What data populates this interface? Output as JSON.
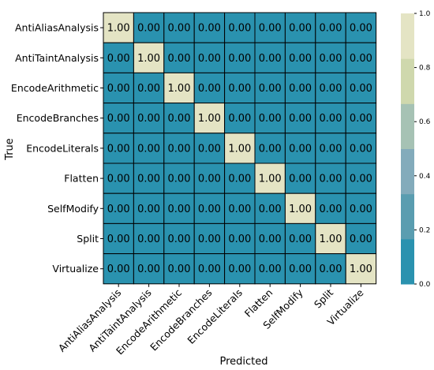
{
  "chart_data": {
    "type": "heatmap",
    "title": "",
    "xlabel": "Predicted",
    "ylabel": "True",
    "labels": [
      "AntiAliasAnalysis",
      "AntiTaintAnalysis",
      "EncodeArithmetic",
      "EncodeBranches",
      "EncodeLiterals",
      "Flatten",
      "SelfModify",
      "Split",
      "Virtualize"
    ],
    "matrix": [
      [
        1,
        0,
        0,
        0,
        0,
        0,
        0,
        0,
        0
      ],
      [
        0,
        1,
        0,
        0,
        0,
        0,
        0,
        0,
        0
      ],
      [
        0,
        0,
        1,
        0,
        0,
        0,
        0,
        0,
        0
      ],
      [
        0,
        0,
        0,
        1,
        0,
        0,
        0,
        0,
        0
      ],
      [
        0,
        0,
        0,
        0,
        1,
        0,
        0,
        0,
        0
      ],
      [
        0,
        0,
        0,
        0,
        0,
        1,
        0,
        0,
        0
      ],
      [
        0,
        0,
        0,
        0,
        0,
        0,
        1,
        0,
        0
      ],
      [
        0,
        0,
        0,
        0,
        0,
        0,
        0,
        1,
        0
      ],
      [
        0,
        0,
        0,
        0,
        0,
        0,
        0,
        0,
        1
      ]
    ],
    "value_format": "0.00",
    "colorbar": {
      "ticks": [
        "0.0",
        "0.2",
        "0.4",
        "0.6",
        "0.8",
        "1.0"
      ],
      "colors": [
        "#2a92af",
        "#5a9db0",
        "#83abbb",
        "#a6c2b4",
        "#cfd8ad",
        "#e4e4c4"
      ]
    }
  }
}
